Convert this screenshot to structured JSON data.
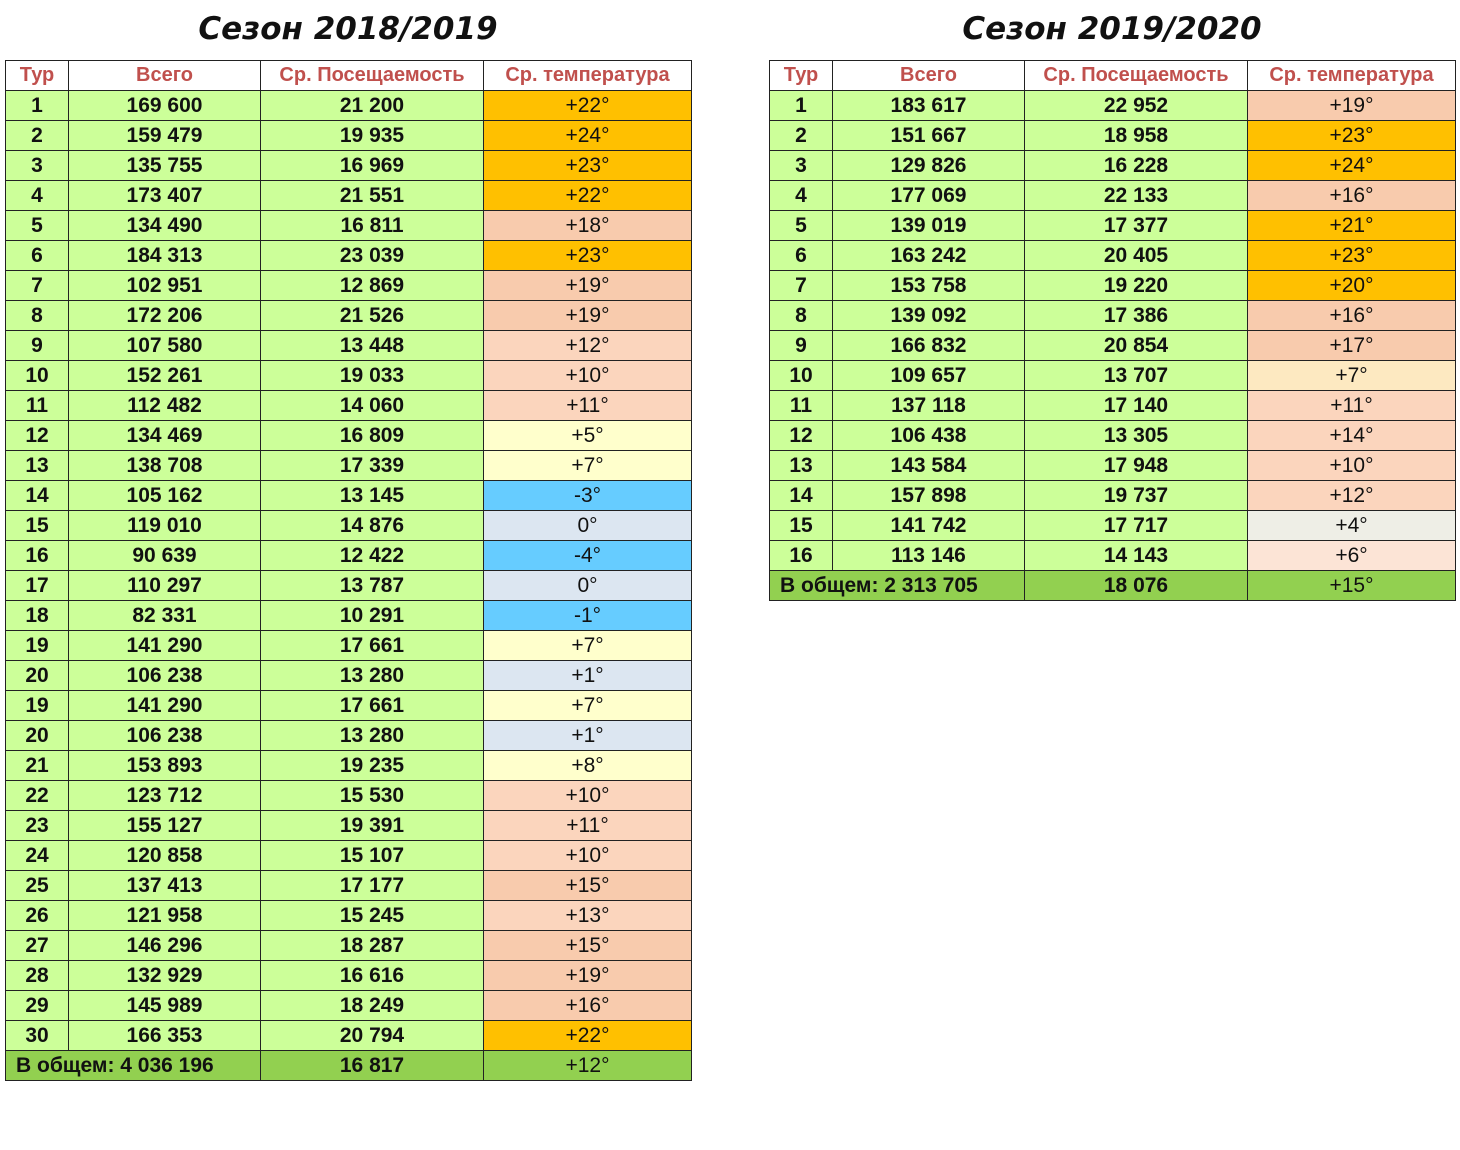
{
  "colors": {
    "header_text": "#c0504d",
    "cell_green": "#ccff99",
    "total_green": "#92d050",
    "temp_hot": "#ffc000",
    "temp_warm": "#f8cbad",
    "temp_mild": "#fbe0cf",
    "temp_cool": "#ffffcc",
    "temp_cold": "#dce6f1",
    "temp_freeze": "#66ccff"
  },
  "seasons": [
    {
      "title": "Сезон 2018/2019",
      "headers": [
        "Тур",
        "Всего",
        "Ср. Посещаемость",
        "Ср. температура"
      ],
      "rows": [
        {
          "tour": "1",
          "total": "169 600",
          "avg": "21 200",
          "temp": "+22°",
          "level": "hot"
        },
        {
          "tour": "2",
          "total": "159 479",
          "avg": "19 935",
          "temp": "+24°",
          "level": "hot"
        },
        {
          "tour": "3",
          "total": "135 755",
          "avg": "16 969",
          "temp": "+23°",
          "level": "hot"
        },
        {
          "tour": "4",
          "total": "173 407",
          "avg": "21 551",
          "temp": "+22°",
          "level": "hot"
        },
        {
          "tour": "5",
          "total": "134 490",
          "avg": "16 811",
          "temp": "+18°",
          "level": "warm"
        },
        {
          "tour": "6",
          "total": "184 313",
          "avg": "23 039",
          "temp": "+23°",
          "level": "hot"
        },
        {
          "tour": "7",
          "total": "102 951",
          "avg": "12 869",
          "temp": "+19°",
          "level": "warm"
        },
        {
          "tour": "8",
          "total": "172 206",
          "avg": "21 526",
          "temp": "+19°",
          "level": "warm"
        },
        {
          "tour": "9",
          "total": "107 580",
          "avg": "13 448",
          "temp": "+12°",
          "level": "mild"
        },
        {
          "tour": "10",
          "total": "152 261",
          "avg": "19 033",
          "temp": "+10°",
          "level": "mild"
        },
        {
          "tour": "11",
          "total": "112 482",
          "avg": "14 060",
          "temp": "+11°",
          "level": "mild"
        },
        {
          "tour": "12",
          "total": "134 469",
          "avg": "16 809",
          "temp": "+5°",
          "level": "cool"
        },
        {
          "tour": "13",
          "total": "138 708",
          "avg": "17 339",
          "temp": "+7°",
          "level": "cool"
        },
        {
          "tour": "14",
          "total": "105 162",
          "avg": "13 145",
          "temp": "-3°",
          "level": "freeze"
        },
        {
          "tour": "15",
          "total": "119 010",
          "avg": "14 876",
          "temp": "0°",
          "level": "cold"
        },
        {
          "tour": "16",
          "total": "90 639",
          "avg": "12 422",
          "temp": "-4°",
          "level": "freeze"
        },
        {
          "tour": "17",
          "total": "110 297",
          "avg": "13 787",
          "temp": "0°",
          "level": "cold"
        },
        {
          "tour": "18",
          "total": "82 331",
          "avg": "10 291",
          "temp": "-1°",
          "level": "freeze"
        },
        {
          "tour": "19",
          "total": "141 290",
          "avg": "17 661",
          "temp": "+7°",
          "level": "cool"
        },
        {
          "tour": "20",
          "total": "106 238",
          "avg": "13 280",
          "temp": "+1°",
          "level": "cold"
        },
        {
          "tour": "19",
          "total": "141 290",
          "avg": "17 661",
          "temp": "+7°",
          "level": "cool"
        },
        {
          "tour": "20",
          "total": "106 238",
          "avg": "13 280",
          "temp": "+1°",
          "level": "cold"
        },
        {
          "tour": "21",
          "total": "153 893",
          "avg": "19 235",
          "temp": "+8°",
          "level": "cool"
        },
        {
          "tour": "22",
          "total": "123 712",
          "avg": "15 530",
          "temp": "+10°",
          "level": "mild"
        },
        {
          "tour": "23",
          "total": "155 127",
          "avg": "19 391",
          "temp": "+11°",
          "level": "mild"
        },
        {
          "tour": "24",
          "total": "120 858",
          "avg": "15 107",
          "temp": "+10°",
          "level": "mild"
        },
        {
          "tour": "25",
          "total": "137 413",
          "avg": "17 177",
          "temp": "+15°",
          "level": "warm"
        },
        {
          "tour": "26",
          "total": "121 958",
          "avg": "15 245",
          "temp": "+13°",
          "level": "mild"
        },
        {
          "tour": "27",
          "total": "146 296",
          "avg": "18 287",
          "temp": "+15°",
          "level": "warm"
        },
        {
          "tour": "28",
          "total": "132 929",
          "avg": "16 616",
          "temp": "+19°",
          "level": "warm"
        },
        {
          "tour": "29",
          "total": "145 989",
          "avg": "18 249",
          "temp": "+16°",
          "level": "warm"
        },
        {
          "tour": "30",
          "total": "166 353",
          "avg": "20 794",
          "temp": "+22°",
          "level": "hot"
        }
      ],
      "summary": {
        "label": "В общем:  4 036 196",
        "avg": "16 817",
        "temp": "+12°"
      }
    },
    {
      "title": "Сезон 2019/2020",
      "headers": [
        "Тур",
        "Всего",
        "Ср. Посещаемость",
        "Ср. температура"
      ],
      "rows": [
        {
          "tour": "1",
          "total": "183 617",
          "avg": "22 952",
          "temp": "+19°",
          "level": "warm"
        },
        {
          "tour": "2",
          "total": "151 667",
          "avg": "18 958",
          "temp": "+23°",
          "level": "hot"
        },
        {
          "tour": "3",
          "total": "129 826",
          "avg": "16 228",
          "temp": "+24°",
          "level": "hot"
        },
        {
          "tour": "4",
          "total": "177 069",
          "avg": "22 133",
          "temp": "+16°",
          "level": "warm"
        },
        {
          "tour": "5",
          "total": "139 019",
          "avg": "17 377",
          "temp": "+21°",
          "level": "hot"
        },
        {
          "tour": "6",
          "total": "163 242",
          "avg": "20 405",
          "temp": "+23°",
          "level": "hot"
        },
        {
          "tour": "7",
          "total": "153 758",
          "avg": "19 220",
          "temp": "+20°",
          "level": "hot"
        },
        {
          "tour": "8",
          "total": "139 092",
          "avg": "17 386",
          "temp": "+16°",
          "level": "warm"
        },
        {
          "tour": "9",
          "total": "166 832",
          "avg": "20 854",
          "temp": "+17°",
          "level": "warm"
        },
        {
          "tour": "10",
          "total": "109 657",
          "avg": "13 707",
          "temp": "+7°",
          "level": "cool2"
        },
        {
          "tour": "11",
          "total": "137 118",
          "avg": "17 140",
          "temp": "+11°",
          "level": "mild"
        },
        {
          "tour": "12",
          "total": "106 438",
          "avg": "13 305",
          "temp": "+14°",
          "level": "mild"
        },
        {
          "tour": "13",
          "total": "143 584",
          "avg": "17 948",
          "temp": "+10°",
          "level": "mild"
        },
        {
          "tour": "14",
          "total": "157 898",
          "avg": "19 737",
          "temp": "+12°",
          "level": "mild"
        },
        {
          "tour": "15",
          "total": "141 742",
          "avg": "17 717",
          "temp": "+4°",
          "level": "neutral"
        },
        {
          "tour": "16",
          "total": "113 146",
          "avg": "14 143",
          "temp": "+6°",
          "level": "pale"
        }
      ],
      "summary": {
        "label": "В общем: 2 313 705",
        "avg": "18 076",
        "temp": "+15°"
      }
    }
  ]
}
